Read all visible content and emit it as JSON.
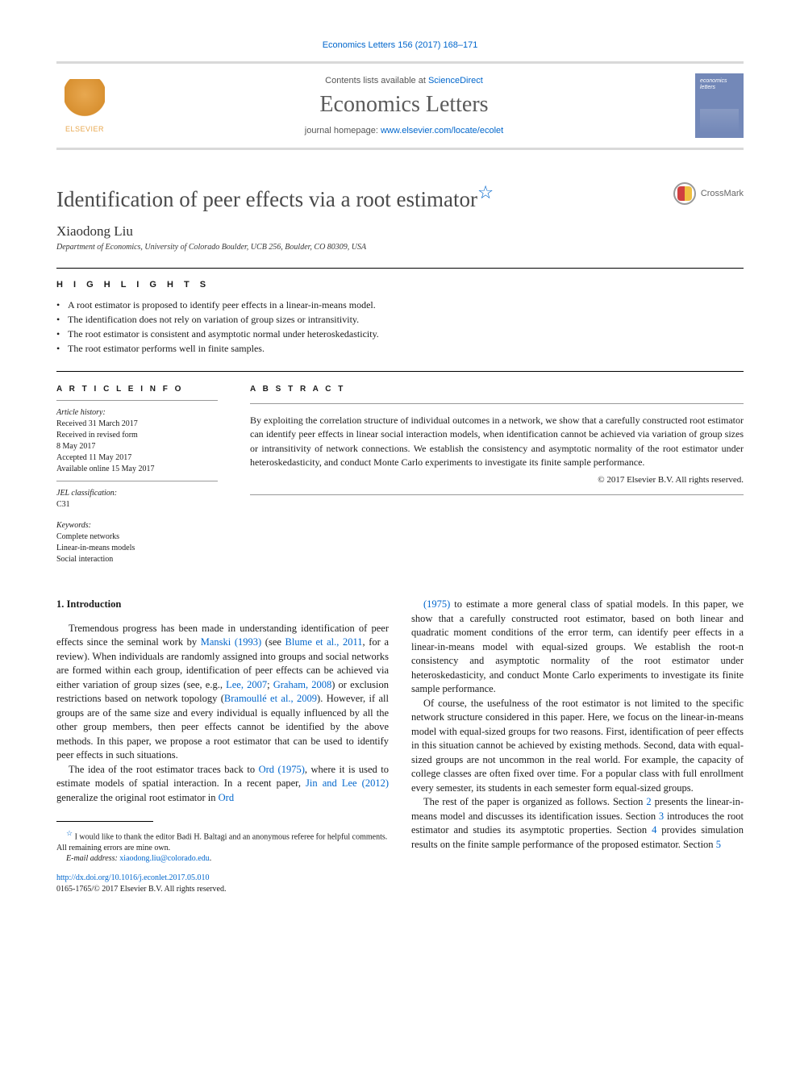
{
  "citation": "Economics Letters 156 (2017) 168–171",
  "header": {
    "contents_prefix": "Contents lists available at ",
    "sd_label": "ScienceDirect",
    "journal_name": "Economics Letters",
    "homepage_prefix": "journal homepage: ",
    "homepage_url": "www.elsevier.com/locate/ecolet",
    "elsevier_label": "ELSEVIER",
    "cover_title": "economics letters"
  },
  "title": "Identification of peer effects via a root estimator",
  "title_star": "☆",
  "crossmark_label": "CrossMark",
  "author": "Xiaodong Liu",
  "affiliation": "Department of Economics, University of Colorado Boulder, UCB 256, Boulder, CO 80309, USA",
  "highlights_label": "h i g h l i g h t s",
  "highlights": [
    "A root estimator is proposed to identify peer effects in a linear-in-means model.",
    "The identification does not rely on variation of group sizes or intransitivity.",
    "The root estimator is consistent and asymptotic normal under heteroskedasticity.",
    "The root estimator performs well in finite samples."
  ],
  "article_info_label": "a r t i c l e   i n f o",
  "abstract_label": "a b s t r a c t",
  "history_label": "Article history:",
  "history": [
    "Received 31 March 2017",
    "Received in revised form",
    "8 May 2017",
    "Accepted 11 May 2017",
    "Available online 15 May 2017"
  ],
  "jel_label": "JEL classification:",
  "jel": "C31",
  "keywords_label": "Keywords:",
  "keywords": [
    "Complete networks",
    "Linear-in-means models",
    "Social interaction"
  ],
  "abstract": "By exploiting the correlation structure of individual outcomes in a network, we show that a carefully constructed root estimator can identify peer effects in linear social interaction models, when identification cannot be achieved via variation of group sizes or intransitivity of network connections. We establish the consistency and asymptotic normality of the root estimator under heteroskedasticity, and conduct Monte Carlo experiments to investigate its finite sample performance.",
  "copyright": "© 2017 Elsevier B.V. All rights reserved.",
  "section1_heading": "1.  Introduction",
  "refs": {
    "manski": "Manski (1993)",
    "blume": "Blume et al., 2011",
    "lee2007": "Lee, 2007",
    "graham": "Graham, 2008",
    "bramoulle": "Bramoullé et al., 2009",
    "ord": "Ord (1975)",
    "jinlee": "Jin and Lee (2012)",
    "ord2": "Ord",
    "ord_year": "(1975)",
    "sec2": "2",
    "sec3": "3",
    "sec4": "4",
    "sec5": "5"
  },
  "para1a": "Tremendous progress has been made in understanding identification of peer effects since the seminal work by ",
  "para1b": " (see ",
  "para1c": ", for a review). When individuals are randomly assigned into groups and social networks are formed within each group, identification of peer effects can be achieved via either variation of group sizes (see, e.g., ",
  "para1d": "; ",
  "para1e": ") or exclusion restrictions based on network topology (",
  "para1f": "). However, if all groups are of the same size and every individual is equally influenced by all the other group members, then peer effects cannot be identified by the above methods. In this paper, we propose a root estimator that can be used to identify peer effects in such situations.",
  "para2a": "The idea of the root estimator traces back to ",
  "para2b": ", where it is used to estimate models of spatial interaction. In a recent paper, ",
  "para2c": " generalize the original root estimator in ",
  "para3a": " to estimate a more general class of spatial models. In this paper, we show that a carefully constructed root estimator, based on both linear and quadratic moment conditions of the error term, can identify peer effects in a linear-in-means model with equal-sized groups. We establish the root-n consistency and asymptotic normality of the root estimator under heteroskedasticity, and conduct Monte Carlo experiments to investigate its finite sample performance.",
  "para4": "Of course, the usefulness of the root estimator is not limited to the specific network structure considered in this paper. Here, we focus on the linear-in-means model with equal-sized groups for two reasons. First, identification of peer effects in this situation cannot be achieved by existing methods. Second, data with equal-sized groups are not uncommon in the real world. For example, the capacity of college classes are often fixed over time. For a popular class with full enrollment every semester, its students in each semester form equal-sized groups.",
  "para5a": "The rest of the paper is organized as follows. Section ",
  "para5b": " presents the linear-in-means model and discusses its identification issues. Section ",
  "para5c": " introduces the root estimator and studies its asymptotic properties. Section ",
  "para5d": " provides simulation results on the finite sample performance of the proposed estimator. Section ",
  "footnote_star": "☆",
  "footnote1": " I would like to thank the editor Badi H. Baltagi and an anonymous referee for helpful comments. All remaining errors are mine own.",
  "email_label": "E-mail address: ",
  "email": "xiaodong.liu@colorado.edu",
  "doi": "http://dx.doi.org/10.1016/j.econlet.2017.05.010",
  "issn_line": "0165-1765/© 2017 Elsevier B.V. All rights reserved.",
  "colors": {
    "link": "#0066cc",
    "elsevier_orange": "#e8a850",
    "cover_blue": "#7388b8",
    "crossmark_red": "#d04040",
    "crossmark_yellow": "#f0c040"
  }
}
